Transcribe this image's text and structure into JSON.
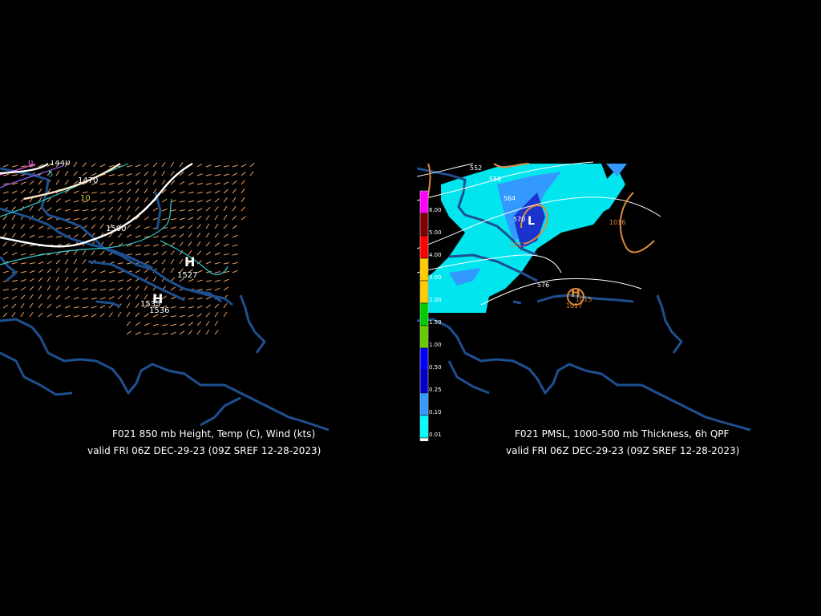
{
  "left": {
    "caption_line1": "F021 850 mb Height, Temp (C), Wind (kts)",
    "caption_line2": "valid FRI 06Z DEC-29-23 (09Z SREF 12-28-2023)",
    "labels": {
      "h1440": "1440",
      "h1470": "1470",
      "h1500": "1500",
      "t0": "0",
      "t5": "5",
      "t10": "10",
      "hi_symbol": "H",
      "hi_value": "1527",
      "lo_symbol": "H",
      "lo_value1": "1535",
      "lo_value2": "1536"
    }
  },
  "right": {
    "caption_line1": "F021 PMSL, 1000-500 mb Thickness, 6h QPF",
    "caption_line2": "valid FRI 06Z DEC-29-23 (09Z SREF 12-28-2023)",
    "labels": {
      "th552": "552",
      "th558": "558",
      "th564": "564",
      "th570": "570",
      "th576": "576",
      "p1016": "1016",
      "p1012": "1012",
      "p1015": "1015",
      "low_symbol": "L",
      "high_symbol": "H",
      "p1017": "1017"
    },
    "legend": [
      {
        "label": "6.00",
        "color": "#ff00ff"
      },
      {
        "label": "5.00",
        "color": "#7f0000"
      },
      {
        "label": "4.00",
        "color": "#ff0000"
      },
      {
        "label": "3.00",
        "color": "#ffcc00"
      },
      {
        "label": "2.00",
        "color": "#ffcc00"
      },
      {
        "label": "1.50",
        "color": "#00cc00"
      },
      {
        "label": "1.00",
        "color": "#66cc00"
      },
      {
        "label": "0.50",
        "color": "#0000ff"
      },
      {
        "label": "0.25",
        "color": "#0000cc"
      },
      {
        "label": "0.10",
        "color": "#3399ff"
      },
      {
        "label": "0.01",
        "color": "#00ffff"
      },
      {
        "label": "",
        "color": "#ffffff"
      }
    ]
  },
  "colors": {
    "coast": "#1e4f8f",
    "wind": "#f0a060",
    "height": "#ffffff",
    "temp_cold": "#ff66ff",
    "temp_cyan": "#33cccc",
    "qpf_light": "#00e5ee",
    "qpf_mid": "#3399ff",
    "qpf_heavy": "#1a33cc",
    "pmsl": "#e08a3c"
  }
}
